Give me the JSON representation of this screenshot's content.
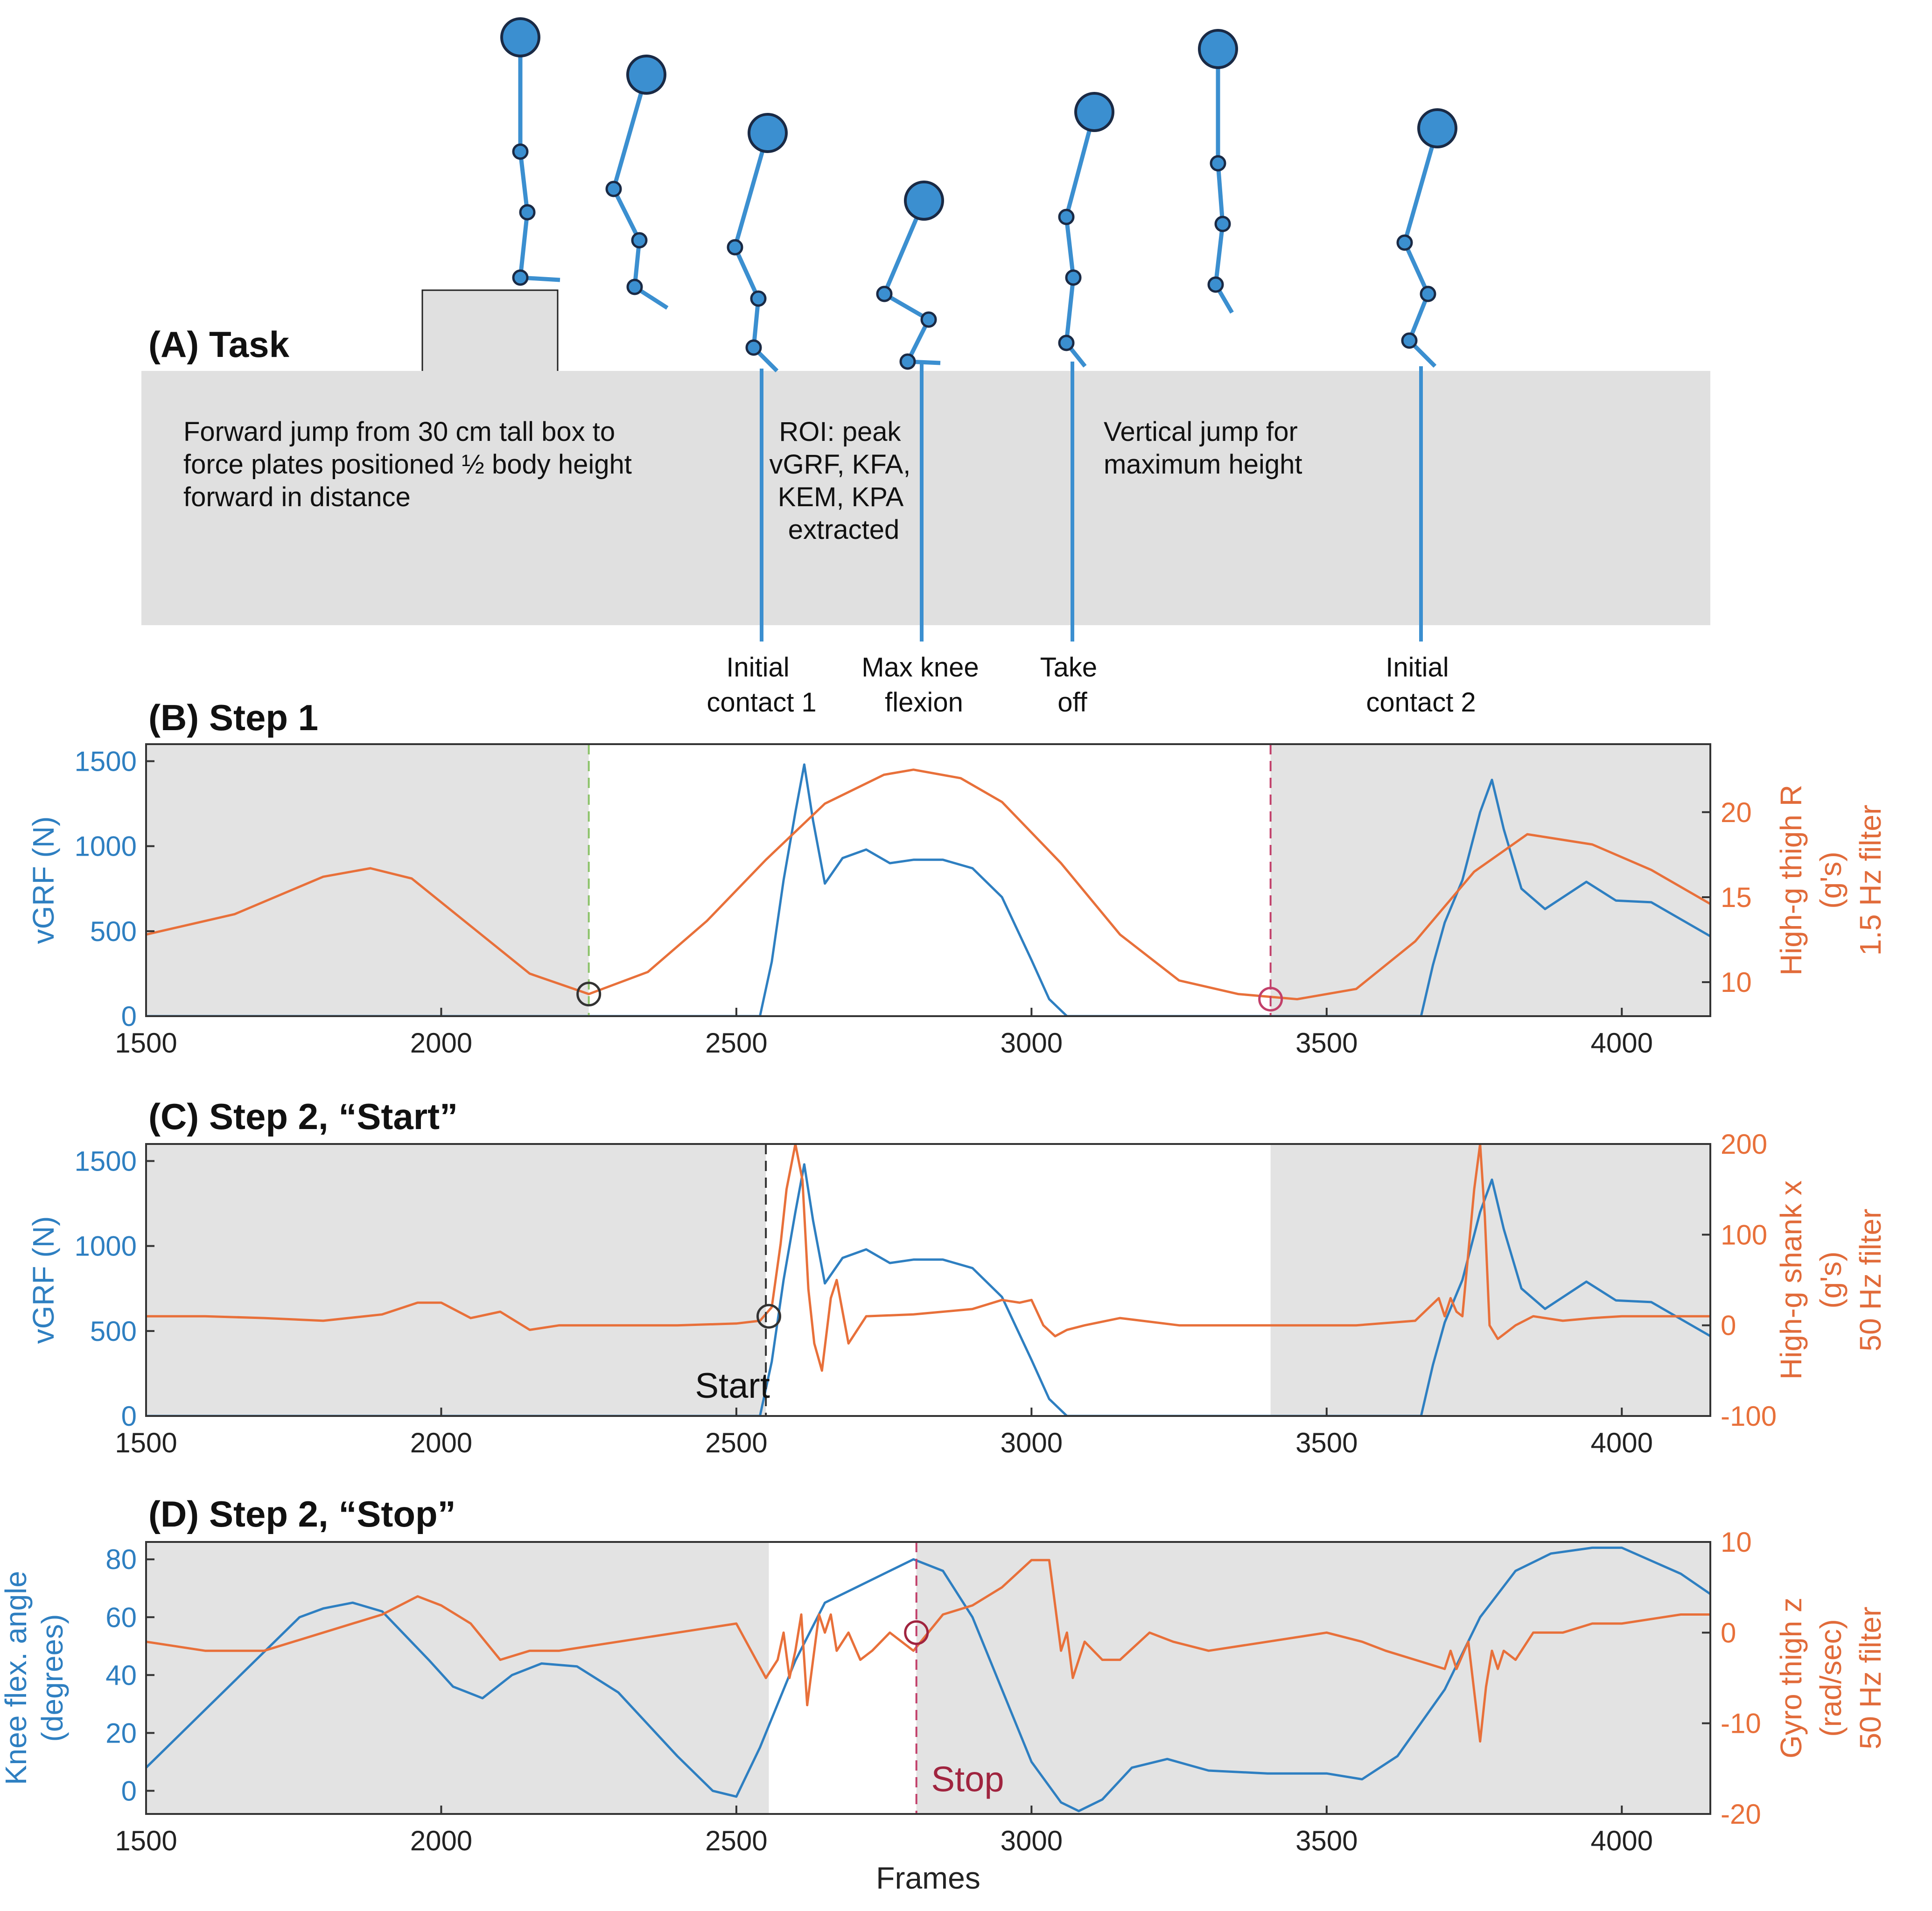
{
  "colors": {
    "blue": "#2e7fc1",
    "orange": "#e8703a",
    "shade": "#e3e3e3",
    "gray_box": "#e0e0e0",
    "stick": "#3b8fd0",
    "dark": "#1a2a45",
    "green": "#8cc36a",
    "pink": "#c2406a",
    "maroon": "#a0243f"
  },
  "panel_a": {
    "title": "(A) Task",
    "box_left_lines": [
      "Forward jump from 30 cm tall box to",
      "force plates positioned ½ body height",
      "forward in distance"
    ],
    "box_mid_lines": [
      "ROI: peak",
      "vGRF, KFA,",
      "KEM, KPA",
      "extracted"
    ],
    "box_right_lines": [
      "Vertical jump for",
      "maximum height"
    ],
    "events": [
      {
        "name": "initial-contact-1",
        "lines": [
          "Initial",
          "contact 1"
        ]
      },
      {
        "name": "max-knee-flexion",
        "lines": [
          "Max knee",
          "flexion"
        ]
      },
      {
        "name": "take-off",
        "lines": [
          "Take",
          "off"
        ]
      },
      {
        "name": "initial-contact-2",
        "lines": [
          "Initial",
          "contact 2"
        ]
      }
    ],
    "figures": 7
  },
  "chart_data": [
    {
      "id": "B",
      "type": "line",
      "title": "(B) Step 1",
      "xlabel": "",
      "xlim": [
        1500,
        4150
      ],
      "xticks": [
        1500,
        2000,
        2500,
        3000,
        3500,
        4000
      ],
      "ylabel_left": [
        "vGRF (N)"
      ],
      "ylim_left": [
        0,
        1600
      ],
      "yticks_left": [
        0,
        500,
        1000,
        1500
      ],
      "ylabel_right": [
        "High-g thigh R",
        "(g's)",
        "1.5 Hz filter"
      ],
      "ylim_right": [
        8,
        24
      ],
      "yticks_right": [
        10,
        15,
        20
      ],
      "shaded_x": [
        [
          1500,
          2250
        ],
        [
          3405,
          4150
        ]
      ],
      "vlines": [
        {
          "x": 2250,
          "color": "#8cc36a"
        },
        {
          "x": 3405,
          "color": "#c2406a"
        }
      ],
      "markers": [
        {
          "x": 2250,
          "y": 9.3,
          "color": "#333333"
        },
        {
          "x": 3405,
          "y": 9.0,
          "color": "#c2406a"
        }
      ],
      "annotations": [],
      "series": [
        {
          "name": "vGRF",
          "axis": "left",
          "x": [
            1500,
            2540,
            2560,
            2580,
            2600,
            2615,
            2630,
            2650,
            2680,
            2720,
            2760,
            2800,
            2850,
            2900,
            2950,
            3000,
            3030,
            3060,
            3660,
            3680,
            3700,
            3730,
            3760,
            3780,
            3800,
            3830,
            3870,
            3940,
            3990,
            4050,
            4150
          ],
          "values": [
            0,
            0,
            320,
            800,
            1200,
            1480,
            1150,
            780,
            930,
            980,
            900,
            920,
            920,
            870,
            700,
            330,
            100,
            0,
            0,
            300,
            550,
            800,
            1200,
            1390,
            1100,
            750,
            630,
            790,
            680,
            670,
            470
          ]
        },
        {
          "name": "High-g thigh R",
          "axis": "right",
          "x": [
            1500,
            1650,
            1800,
            1880,
            1950,
            2050,
            2150,
            2250,
            2350,
            2450,
            2550,
            2650,
            2750,
            2800,
            2880,
            2950,
            3050,
            3150,
            3250,
            3350,
            3450,
            3550,
            3650,
            3750,
            3840,
            3950,
            4050,
            4150
          ],
          "values": [
            12.8,
            14.0,
            16.2,
            16.7,
            16.1,
            13.3,
            10.5,
            9.3,
            10.6,
            13.6,
            17.2,
            20.5,
            22.2,
            22.5,
            22.0,
            20.6,
            17.0,
            12.8,
            10.1,
            9.3,
            9.0,
            9.6,
            12.4,
            16.5,
            18.7,
            18.1,
            16.6,
            14.6
          ]
        }
      ]
    },
    {
      "id": "C",
      "type": "line",
      "title": "(C) Step 2, “Start”",
      "xlabel": "",
      "xlim": [
        1500,
        4150
      ],
      "xticks": [
        1500,
        2000,
        2500,
        3000,
        3500,
        4000
      ],
      "ylabel_left": [
        "vGRF (N)"
      ],
      "ylim_left": [
        0,
        1600
      ],
      "yticks_left": [
        0,
        500,
        1000,
        1500
      ],
      "ylabel_right": [
        "High-g shank x",
        "(g's)",
        "50 Hz filter"
      ],
      "ylim_right": [
        -100,
        200
      ],
      "yticks_right": [
        -100,
        0,
        100,
        200
      ],
      "shaded_x": [
        [
          1500,
          2550
        ],
        [
          3405,
          4150
        ]
      ],
      "vlines": [
        {
          "x": 2550,
          "color": "#333333"
        }
      ],
      "markers": [
        {
          "x": 2555,
          "y": 10,
          "color": "#333333"
        }
      ],
      "annotations": [
        {
          "text": "Start",
          "x": 2430,
          "y": -80,
          "color": "#111111"
        }
      ],
      "series": [
        {
          "name": "vGRF",
          "axis": "left",
          "x": [
            1500,
            2540,
            2560,
            2580,
            2600,
            2615,
            2630,
            2650,
            2680,
            2720,
            2760,
            2800,
            2850,
            2900,
            2950,
            3000,
            3030,
            3060,
            3660,
            3680,
            3700,
            3730,
            3760,
            3780,
            3800,
            3830,
            3870,
            3940,
            3990,
            4050,
            4150
          ],
          "values": [
            0,
            0,
            320,
            800,
            1200,
            1480,
            1150,
            780,
            930,
            980,
            900,
            920,
            920,
            870,
            700,
            330,
            100,
            0,
            0,
            300,
            550,
            800,
            1200,
            1390,
            1100,
            750,
            630,
            790,
            680,
            670,
            470
          ]
        },
        {
          "name": "High-g shank x",
          "axis": "right",
          "x": [
            1500,
            1600,
            1700,
            1800,
            1900,
            1960,
            2000,
            2050,
            2100,
            2150,
            2200,
            2300,
            2400,
            2500,
            2540,
            2560,
            2575,
            2585,
            2600,
            2612,
            2622,
            2632,
            2645,
            2660,
            2670,
            2690,
            2720,
            2800,
            2900,
            2950,
            2980,
            3000,
            3020,
            3040,
            3060,
            3090,
            3150,
            3250,
            3400,
            3550,
            3650,
            3690,
            3700,
            3710,
            3720,
            3730,
            3740,
            3750,
            3760,
            3768,
            3776,
            3790,
            3800,
            3820,
            3850,
            3900,
            3950,
            4000,
            4150
          ],
          "values": [
            10,
            10,
            8,
            5,
            12,
            25,
            25,
            8,
            15,
            -5,
            0,
            0,
            0,
            2,
            5,
            20,
            90,
            150,
            200,
            160,
            40,
            -20,
            -50,
            30,
            50,
            -20,
            10,
            12,
            18,
            28,
            25,
            28,
            0,
            -12,
            -5,
            0,
            8,
            0,
            0,
            0,
            5,
            30,
            10,
            30,
            15,
            10,
            80,
            150,
            200,
            120,
            0,
            -15,
            -10,
            0,
            10,
            5,
            8,
            10,
            10
          ]
        }
      ]
    },
    {
      "id": "D",
      "type": "line",
      "title": "(D) Step 2, “Stop”",
      "xlabel": "Frames",
      "xlim": [
        1500,
        4150
      ],
      "xticks": [
        1500,
        2000,
        2500,
        3000,
        3500,
        4000
      ],
      "ylabel_left": [
        "Knee flex. angle",
        "(degrees)"
      ],
      "ylim_left": [
        -8,
        86
      ],
      "yticks_left": [
        0,
        20,
        40,
        60,
        80
      ],
      "ylabel_right": [
        "Gyro thigh z",
        "(rad/sec)",
        "50 Hz filter"
      ],
      "ylim_right": [
        -20,
        10
      ],
      "yticks_right": [
        -20,
        -10,
        0,
        10
      ],
      "shaded_x": [
        [
          1500,
          2555
        ],
        [
          2805,
          4150
        ]
      ],
      "vlines": [
        {
          "x": 2805,
          "color": "#c2406a"
        }
      ],
      "markers": [
        {
          "x": 2805,
          "y": 0,
          "color": "#a0243f"
        }
      ],
      "annotations": [
        {
          "text": "Stop",
          "x": 2830,
          "y": -17.5,
          "color": "#a0243f"
        }
      ],
      "series": [
        {
          "name": "Knee flex. angle",
          "axis": "left",
          "x": [
            1500,
            1600,
            1700,
            1760,
            1800,
            1850,
            1900,
            1980,
            2020,
            2070,
            2120,
            2170,
            2230,
            2300,
            2400,
            2460,
            2500,
            2540,
            2600,
            2650,
            2700,
            2760,
            2800,
            2850,
            2900,
            2950,
            3000,
            3050,
            3080,
            3120,
            3170,
            3230,
            3300,
            3400,
            3500,
            3560,
            3620,
            3700,
            3760,
            3820,
            3880,
            3950,
            4000,
            4100,
            4150
          ],
          "values": [
            8,
            28,
            48,
            60,
            63,
            65,
            62,
            45,
            36,
            32,
            40,
            44,
            43,
            34,
            12,
            0,
            -2,
            15,
            45,
            65,
            70,
            76,
            80,
            76,
            60,
            35,
            10,
            -4,
            -7,
            -3,
            8,
            11,
            7,
            6,
            6,
            4,
            12,
            35,
            60,
            76,
            82,
            84,
            84,
            75,
            68
          ]
        },
        {
          "name": "Gyro thigh z",
          "axis": "right",
          "x": [
            1500,
            1600,
            1700,
            1800,
            1900,
            1960,
            2000,
            2050,
            2100,
            2150,
            2200,
            2300,
            2400,
            2500,
            2550,
            2570,
            2580,
            2590,
            2600,
            2610,
            2620,
            2630,
            2640,
            2650,
            2660,
            2670,
            2690,
            2710,
            2730,
            2760,
            2800,
            2850,
            2900,
            2950,
            3000,
            3030,
            3040,
            3050,
            3060,
            3070,
            3090,
            3120,
            3150,
            3200,
            3240,
            3300,
            3400,
            3500,
            3560,
            3600,
            3650,
            3700,
            3710,
            3720,
            3740,
            3760,
            3770,
            3780,
            3790,
            3800,
            3820,
            3850,
            3900,
            3950,
            4000,
            4100,
            4150
          ],
          "values": [
            -1,
            -2,
            -2,
            0,
            2,
            4,
            3,
            1,
            -3,
            -2,
            -2,
            -1,
            0,
            1,
            -5,
            -3,
            0,
            -5,
            -2,
            2,
            -8,
            -3,
            2,
            0,
            2,
            -2,
            0,
            -3,
            -2,
            0,
            -2,
            2,
            3,
            5,
            8,
            8,
            3,
            -2,
            0,
            -5,
            -1,
            -3,
            -3,
            0,
            -1,
            -2,
            -1,
            0,
            -1,
            -2,
            -3,
            -4,
            -2,
            -4,
            -1,
            -12,
            -6,
            -2,
            -4,
            -2,
            -3,
            0,
            0,
            1,
            1,
            2,
            2
          ]
        }
      ]
    }
  ]
}
